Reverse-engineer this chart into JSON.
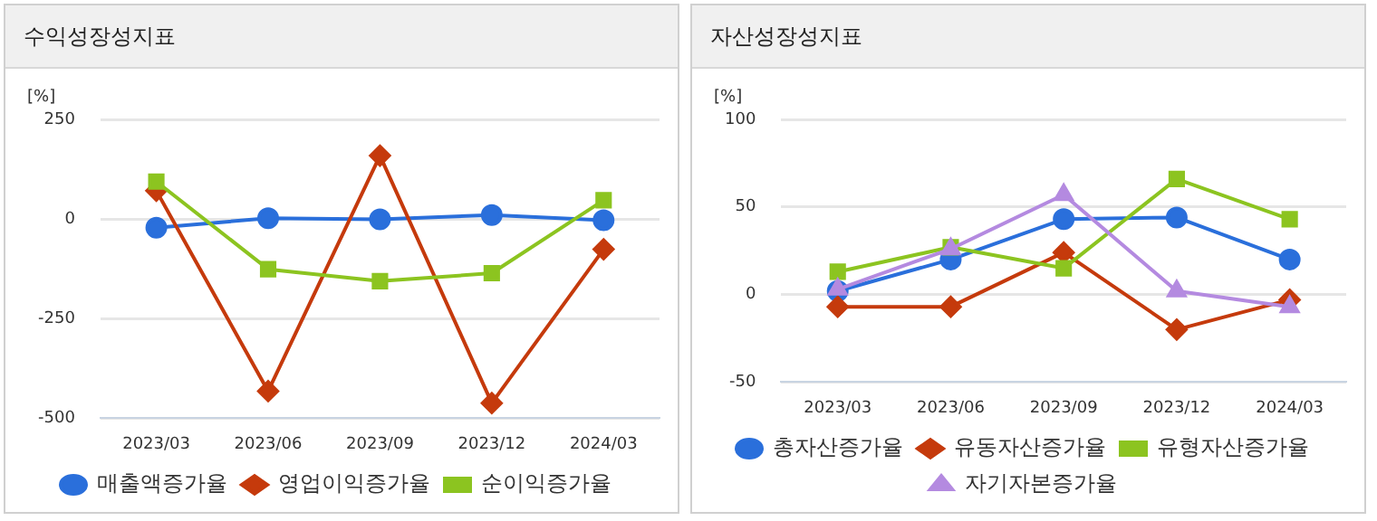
{
  "chart_data": [
    {
      "type": "line",
      "title": "수익성장성지표",
      "ylabel": "[%]",
      "categories": [
        "2023/03",
        "2023/06",
        "2023/09",
        "2023/12",
        "2024/03"
      ],
      "ylim": [
        -500,
        250
      ],
      "yticks": [
        -500,
        -250,
        0,
        250
      ],
      "grid": "y",
      "legend": "bottom",
      "series": [
        {
          "name": "매출액증가율",
          "color": "#2a6fdb",
          "marker": "circle",
          "values": [
            -22,
            2,
            -1,
            10,
            -3
          ]
        },
        {
          "name": "영업이익증가율",
          "color": "#c53a0c",
          "marker": "diamond",
          "values": [
            71,
            -432,
            159,
            -462,
            -76
          ]
        },
        {
          "name": "순이익증가율",
          "color": "#8cc420",
          "marker": "square",
          "values": [
            94,
            -126,
            -156,
            -136,
            47
          ]
        }
      ]
    },
    {
      "type": "line",
      "title": "자산성장성지표",
      "ylabel": "[%]",
      "categories": [
        "2023/03",
        "2023/06",
        "2023/09",
        "2023/12",
        "2024/03"
      ],
      "ylim": [
        -50,
        100
      ],
      "yticks": [
        -50,
        0,
        50,
        100
      ],
      "grid": "y",
      "legend": "bottom",
      "series": [
        {
          "name": "총자산증가율",
          "color": "#2a6fdb",
          "marker": "circle",
          "values": [
            2,
            20,
            43,
            44,
            20
          ]
        },
        {
          "name": "유동자산증가율",
          "color": "#c53a0c",
          "marker": "diamond",
          "values": [
            -7,
            -7,
            24,
            -20,
            -3
          ]
        },
        {
          "name": "유형자산증가율",
          "color": "#8cc420",
          "marker": "square",
          "values": [
            13,
            27,
            15,
            66,
            43
          ]
        },
        {
          "name": "자기자본증가율",
          "color": "#b48ae0",
          "marker": "triangle",
          "values": [
            3,
            26,
            57,
            2,
            -7
          ]
        }
      ]
    }
  ]
}
